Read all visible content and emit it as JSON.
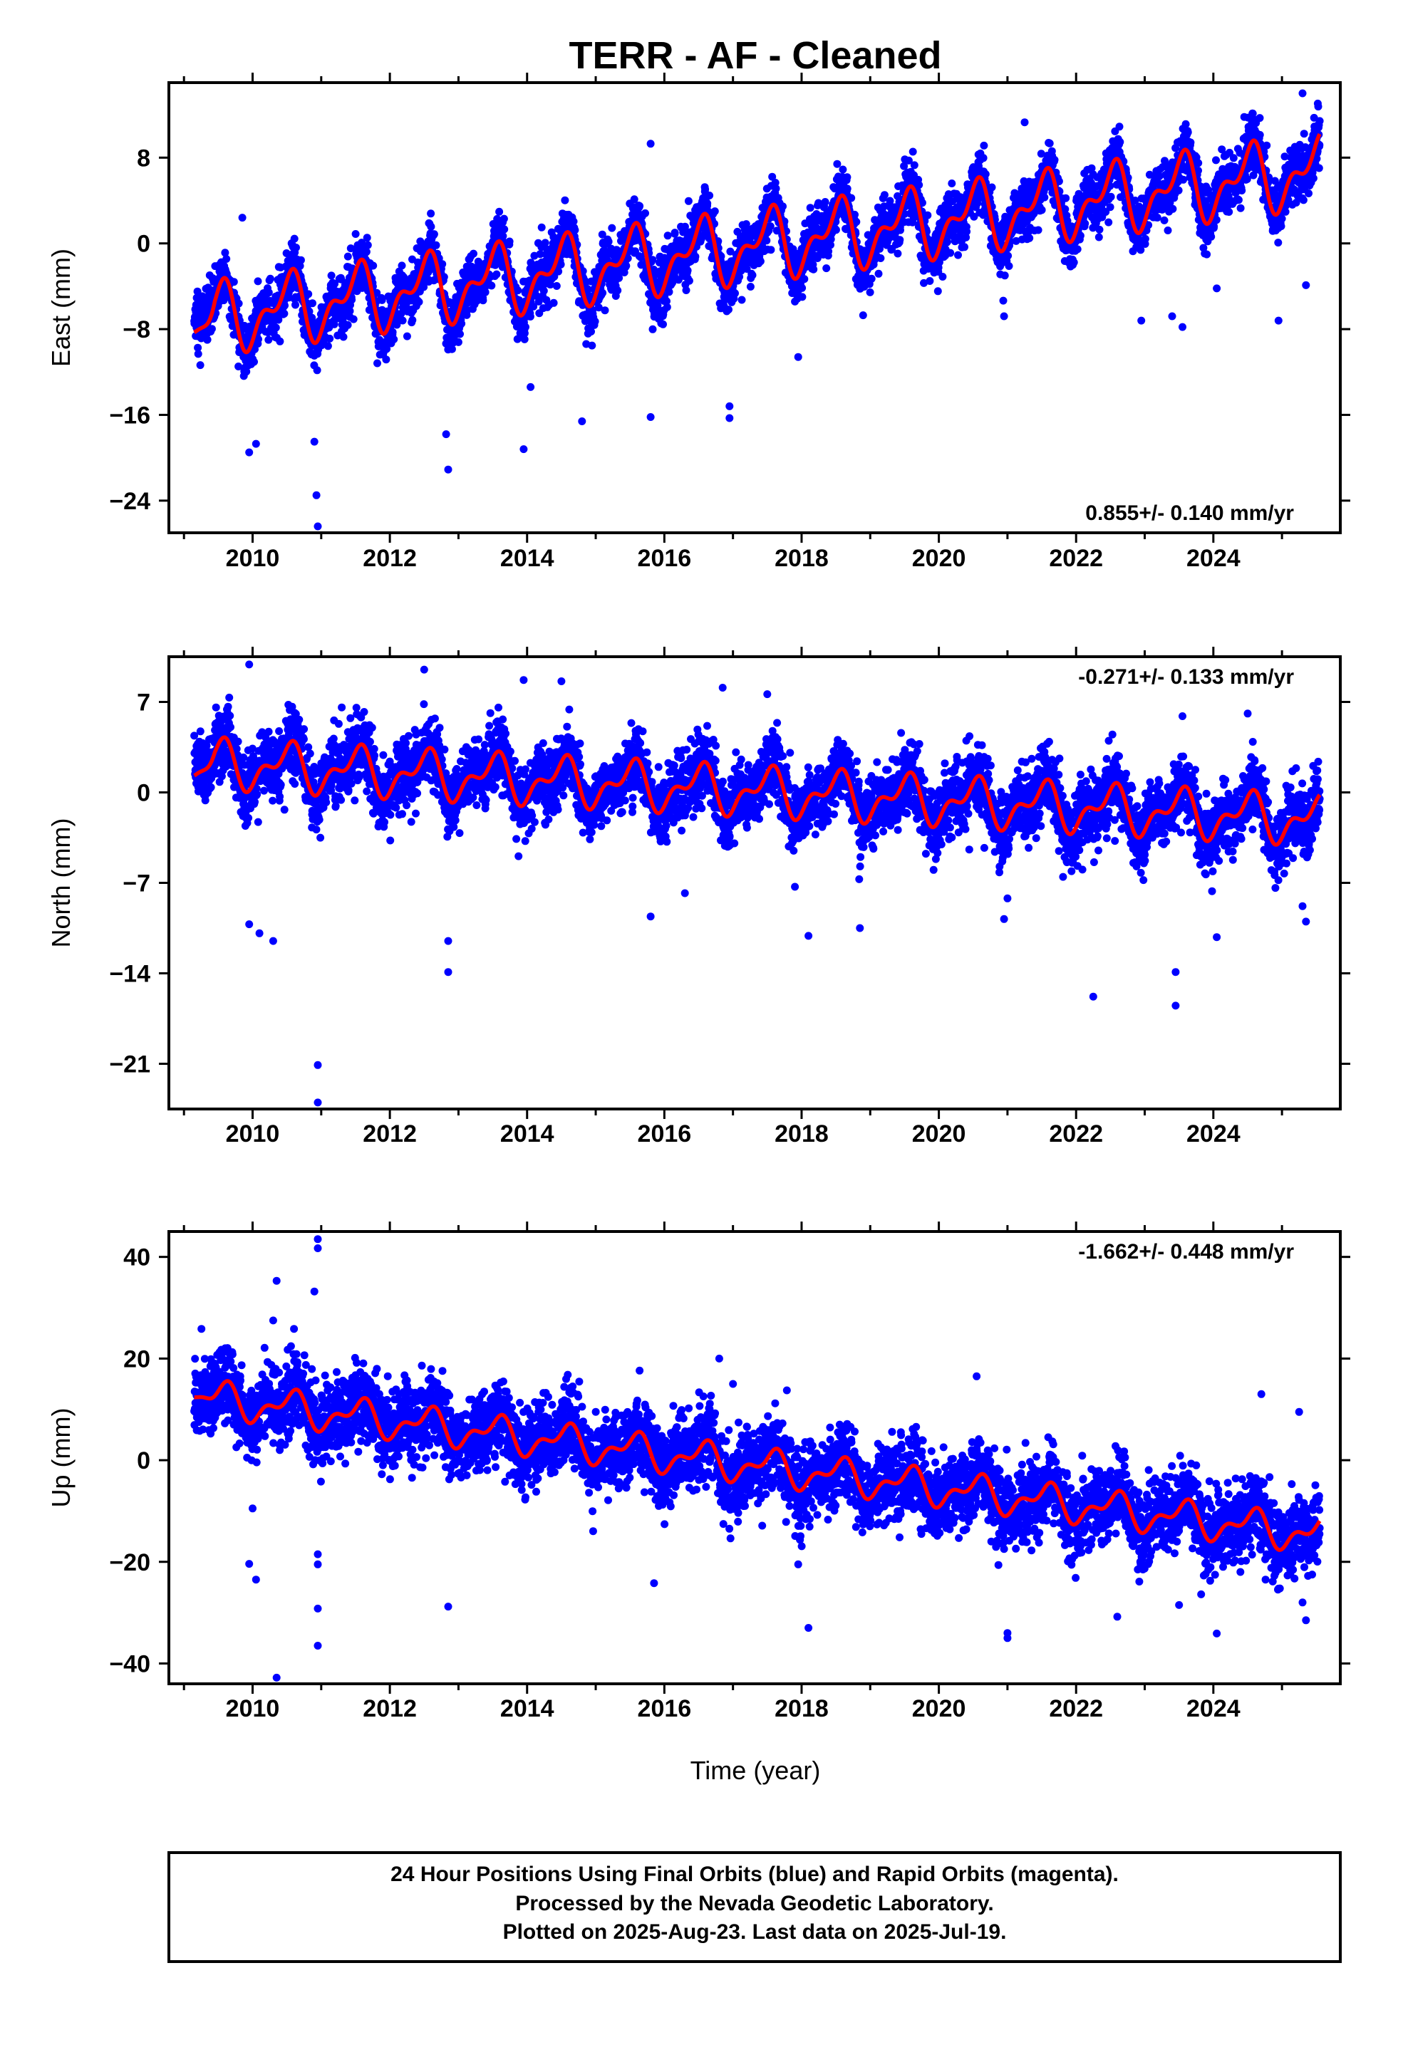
{
  "title": "TERR  - AF - Cleaned",
  "xlabel": "Time (year)",
  "colors": {
    "points": "#0000ff",
    "fit": "#ff0000",
    "frame": "#000000"
  },
  "footer": {
    "line1": "24 Hour Positions Using Final Orbits (blue) and Rapid Orbits (magenta).",
    "line2": "Processed by the Nevada Geodetic Laboratory.",
    "line3": "Plotted on 2025-Aug-23. Last data on 2025-Jul-19."
  },
  "chart_data": [
    {
      "type": "scatter",
      "ylabel": "East (mm)",
      "rate_label": "0.855+/- 0.140 mm/yr",
      "rate_position": "bottom-right",
      "xlim": [
        2008.78,
        2025.85
      ],
      "ylim": [
        -27,
        15
      ],
      "x_ticks": [
        2010,
        2012,
        2014,
        2016,
        2018,
        2020,
        2022,
        2024
      ],
      "y_ticks": [
        -24,
        -16,
        -8,
        0,
        8
      ],
      "data_span": [
        2009.15,
        2025.55
      ],
      "series": [
        {
          "kind": "daily_positions",
          "color": "#0000ff",
          "trend_start": -7.2,
          "trend_rate": 0.855,
          "seasonal_amplitude": 2.6,
          "peak_phase": 0.5,
          "scatter_sd": 1.3,
          "outliers": [
            [
              2009.85,
              2.4
            ],
            [
              2010.95,
              -26.4
            ],
            [
              2010.93,
              -23.5
            ],
            [
              2010.9,
              -18.5
            ],
            [
              2009.95,
              -19.5
            ],
            [
              2010.05,
              -18.7
            ],
            [
              2012.85,
              -21.1
            ],
            [
              2012.82,
              -17.8
            ],
            [
              2013.95,
              -19.2
            ],
            [
              2014.05,
              -13.4
            ],
            [
              2014.8,
              -16.6
            ],
            [
              2015.8,
              9.3
            ],
            [
              2015.8,
              -16.2
            ],
            [
              2016.95,
              -15.2
            ],
            [
              2016.95,
              -16.3
            ],
            [
              2017.95,
              -10.6
            ],
            [
              2022.95,
              -7.2
            ],
            [
              2023.55,
              -7.8
            ],
            [
              2024.05,
              -4.2
            ],
            [
              2024.95,
              -7.2
            ],
            [
              2025.35,
              -3.9
            ],
            [
              2025.3,
              14.0
            ],
            [
              2024.45,
              11.8
            ],
            [
              2021.25,
              11.3
            ],
            [
              2023.4,
              -6.8
            ],
            [
              2020.95,
              -6.8
            ]
          ]
        },
        {
          "kind": "model_fit",
          "color": "#ff0000",
          "first_point": [
            2009.15,
            -8.3
          ]
        }
      ]
    },
    {
      "type": "scatter",
      "ylabel": "North (mm)",
      "rate_label": "-0.271+/- 0.133 mm/yr",
      "rate_position": "top-right",
      "xlim": [
        2008.78,
        2025.85
      ],
      "ylim": [
        -24.5,
        10.5
      ],
      "x_ticks": [
        2010,
        2012,
        2014,
        2016,
        2018,
        2020,
        2022,
        2024
      ],
      "y_ticks": [
        -21,
        -14,
        -7,
        0,
        7
      ],
      "data_span": [
        2009.15,
        2025.55
      ],
      "series": [
        {
          "kind": "daily_positions",
          "color": "#0000ff",
          "trend_start": 2.3,
          "trend_rate": -0.271,
          "seasonal_amplitude": 1.5,
          "peak_phase": 0.5,
          "scatter_sd": 1.3,
          "outliers": [
            [
              2009.95,
              9.9
            ],
            [
              2012.5,
              9.5
            ],
            [
              2013.95,
              8.7
            ],
            [
              2014.5,
              8.6
            ],
            [
              2016.85,
              8.1
            ],
            [
              2017.5,
              7.6
            ],
            [
              2010.95,
              -21.1
            ],
            [
              2010.95,
              -24.0
            ],
            [
              2012.85,
              -11.5
            ],
            [
              2012.85,
              -13.9
            ],
            [
              2009.95,
              -10.2
            ],
            [
              2010.1,
              -10.9
            ],
            [
              2010.3,
              -11.5
            ],
            [
              2015.8,
              -9.6
            ],
            [
              2016.3,
              -7.8
            ],
            [
              2018.1,
              -11.1
            ],
            [
              2018.85,
              -10.5
            ],
            [
              2020.95,
              -9.8
            ],
            [
              2021.0,
              -8.2
            ],
            [
              2022.25,
              -15.8
            ],
            [
              2023.45,
              -13.9
            ],
            [
              2023.45,
              -16.5
            ],
            [
              2024.05,
              -11.2
            ],
            [
              2025.35,
              -10.0
            ],
            [
              2025.3,
              -8.8
            ],
            [
              2024.5,
              6.1
            ],
            [
              2023.55,
              5.9
            ],
            [
              2019.45,
              4.6
            ]
          ]
        },
        {
          "kind": "model_fit",
          "color": "#ff0000",
          "first_point": [
            2009.15,
            1.3
          ]
        }
      ]
    },
    {
      "type": "scatter",
      "ylabel": "Up (mm)",
      "rate_label": "-1.662+/- 0.448 mm/yr",
      "rate_position": "top-right",
      "xlim": [
        2008.78,
        2025.85
      ],
      "ylim": [
        -44,
        45
      ],
      "x_ticks": [
        2010,
        2012,
        2014,
        2016,
        2018,
        2020,
        2022,
        2024
      ],
      "y_ticks": [
        -40,
        -20,
        0,
        20,
        40
      ],
      "data_span": [
        2009.15,
        2025.55
      ],
      "series": [
        {
          "kind": "daily_positions",
          "color": "#0000ff",
          "trend_start": 12.5,
          "trend_rate": -1.662,
          "seasonal_amplitude": 2.8,
          "peak_phase": 0.55,
          "scatter_sd": 3.8,
          "outliers": [
            [
              2010.95,
              43.5
            ],
            [
              2010.95,
              41.7
            ],
            [
              2010.35,
              35.3
            ],
            [
              2010.9,
              33.2
            ],
            [
              2010.3,
              27.5
            ],
            [
              2009.95,
              -20.4
            ],
            [
              2010.05,
              -23.5
            ],
            [
              2010.0,
              -9.5
            ],
            [
              2010.95,
              -18.5
            ],
            [
              2010.95,
              -20.5
            ],
            [
              2010.95,
              -29.2
            ],
            [
              2010.95,
              -36.5
            ],
            [
              2010.35,
              -42.8
            ],
            [
              2012.85,
              -28.8
            ],
            [
              2015.85,
              -24.2
            ],
            [
              2018.1,
              -33.0
            ],
            [
              2017.95,
              -20.5
            ],
            [
              2020.55,
              16.5
            ],
            [
              2021.0,
              -34.0
            ],
            [
              2021.0,
              -35.0
            ],
            [
              2022.6,
              -30.8
            ],
            [
              2024.05,
              -34.1
            ],
            [
              2023.5,
              -28.5
            ],
            [
              2025.35,
              -31.5
            ],
            [
              2025.3,
              -28.0
            ],
            [
              2025.25,
              9.5
            ],
            [
              2024.7,
              13.0
            ],
            [
              2017.0,
              15.0
            ],
            [
              2016.8,
              20.0
            ]
          ]
        },
        {
          "kind": "model_fit",
          "color": "#ff0000",
          "first_point": [
            2009.15,
            12.4
          ]
        }
      ]
    }
  ]
}
